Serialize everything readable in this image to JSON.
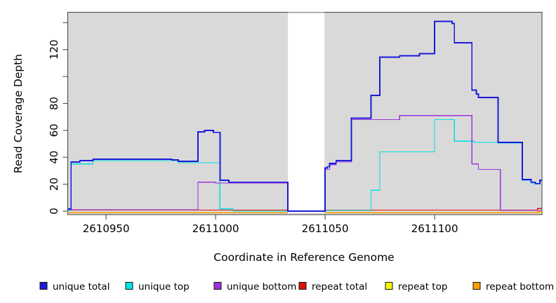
{
  "chart_data": {
    "type": "line",
    "subtype": "step-coverage",
    "title": "",
    "xlabel": "Coordinate in Reference Genome",
    "ylabel": "Read Coverage Depth",
    "xlim": [
      2610932.5,
      2611149
    ],
    "ylim": [
      0,
      148
    ],
    "grid": false,
    "plot_bg": "#d9d9d9",
    "gap_region": {
      "from": 2611033,
      "to": 2611049.7,
      "fill": "#ffffff"
    },
    "x_ticks": [
      2610950,
      2611000,
      2611050,
      2611100
    ],
    "x_tick_labels": [
      "2610950",
      "2611000",
      "2611050",
      "2611100"
    ],
    "y_ticks": [
      0,
      20,
      40,
      60,
      80,
      100,
      120,
      140
    ],
    "y_tick_labels": [
      "0",
      "20",
      "40",
      "60",
      "80",
      "",
      "120",
      ""
    ],
    "legend_position": "bottom",
    "series": [
      {
        "name": "repeat top",
        "color": "#f5f50a",
        "points": [
          [
            2610932.5,
            0
          ]
        ]
      },
      {
        "name": "repeat bottom",
        "color": "#ff9e00",
        "points": [
          [
            2610932.5,
            0
          ],
          [
            2611147,
            0.7
          ]
        ]
      },
      {
        "name": "repeat total",
        "color": "#dd1111",
        "points": [
          [
            2610932.5,
            0.8
          ],
          [
            2611147,
            2
          ]
        ]
      },
      {
        "name": "unique top",
        "color": "#00e0e0",
        "points": [
          [
            2610932.5,
            0.5
          ],
          [
            2610934,
            35
          ],
          [
            2610944,
            37.5
          ],
          [
            2610983,
            36
          ],
          [
            2611002,
            1.7
          ],
          [
            2611008,
            0
          ],
          [
            2611050,
            0.5
          ],
          [
            2611071,
            15.5
          ],
          [
            2611075,
            44
          ],
          [
            2611100,
            68
          ],
          [
            2611109,
            52
          ],
          [
            2611118,
            51
          ],
          [
            2611129,
            50.5
          ],
          [
            2611140,
            23
          ],
          [
            2611144,
            21
          ],
          [
            2611146,
            20
          ],
          [
            2611148,
            22.5
          ]
        ]
      },
      {
        "name": "unique bottom",
        "color": "#9c33db",
        "points": [
          [
            2610932.5,
            1
          ],
          [
            2610992,
            21.5
          ],
          [
            2611000,
            20.8
          ],
          [
            2611033,
            0
          ],
          [
            2611050,
            31
          ],
          [
            2611052,
            34.5
          ],
          [
            2611055,
            36.5
          ],
          [
            2611062,
            68
          ],
          [
            2611084,
            71
          ],
          [
            2611117,
            35
          ],
          [
            2611120,
            31
          ],
          [
            2611130,
            0.5
          ]
        ]
      },
      {
        "name": "unique total",
        "color": "#1a1ad9",
        "points": [
          [
            2610932.5,
            1.5
          ],
          [
            2610934,
            36.5
          ],
          [
            2610938,
            37.5
          ],
          [
            2610944,
            38.5
          ],
          [
            2610980,
            38
          ],
          [
            2610983,
            37
          ],
          [
            2610992,
            59
          ],
          [
            2610995,
            60
          ],
          [
            2610999,
            58.5
          ],
          [
            2611002,
            23
          ],
          [
            2611006,
            21.5
          ],
          [
            2611033,
            0
          ],
          [
            2611050,
            32
          ],
          [
            2611051,
            33
          ],
          [
            2611052,
            35.5
          ],
          [
            2611055,
            37.5
          ],
          [
            2611062,
            69
          ],
          [
            2611071,
            86
          ],
          [
            2611075,
            114.5
          ],
          [
            2611084,
            115.5
          ],
          [
            2611093,
            117
          ],
          [
            2611100,
            141
          ],
          [
            2611108,
            139.5
          ],
          [
            2611109,
            125
          ],
          [
            2611117,
            90
          ],
          [
            2611119,
            87
          ],
          [
            2611120,
            84.5
          ],
          [
            2611129,
            51
          ],
          [
            2611140,
            23.5
          ],
          [
            2611144,
            21.5
          ],
          [
            2611146,
            20.5
          ],
          [
            2611148,
            23
          ]
        ]
      }
    ],
    "legend": [
      {
        "label": "unique total",
        "color": "#1a1ad9"
      },
      {
        "label": "unique top",
        "color": "#00e5e5"
      },
      {
        "label": "unique bottom",
        "color": "#9c33db"
      },
      {
        "label": "repeat total",
        "color": "#dd1111"
      },
      {
        "label": "repeat top",
        "color": "#f5f50a"
      },
      {
        "label": "repeat bottom",
        "color": "#ff9e00"
      }
    ]
  }
}
